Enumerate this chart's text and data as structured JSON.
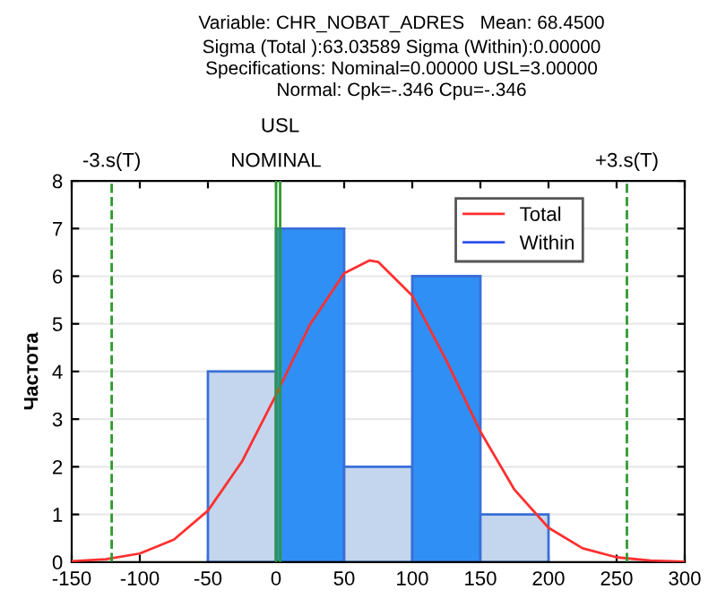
{
  "chart_data": {
    "type": "histogram",
    "title": "Variable: CHR_NOBAT_ADRES   Mean: 68.4500",
    "subtitle": "Sigma (Total ):63.03589 Sigma (Within):0.00000\nSpecifications: Nominal=0.00000 USL=3.00000\nNormal: Cpk=-.346 Cpu=-.346",
    "ylabel": "Частота",
    "bins": [
      -50,
      0,
      50,
      100,
      150,
      200
    ],
    "values": [
      4,
      7,
      2,
      6,
      1
    ],
    "colors": [
      "#c3d6ee",
      "#2f8ff5",
      "#c3d6ee",
      "#2f8ff5",
      "#c3d6ee"
    ],
    "series": [
      {
        "name": "Total",
        "type": "line",
        "color": "#ff3030",
        "x": [
          -150,
          -125,
          -100,
          -75,
          -50,
          -25,
          0,
          25,
          50,
          68.45,
          75,
          100,
          125,
          150,
          175,
          200,
          225,
          250,
          275,
          300
        ],
        "values": [
          0.02,
          0.06,
          0.18,
          0.47,
          1.08,
          2.11,
          3.51,
          4.99,
          6.06,
          6.33,
          6.3,
          5.59,
          4.23,
          2.74,
          1.52,
          0.72,
          0.29,
          0.1,
          0.03,
          0.01
        ]
      },
      {
        "name": "Within",
        "type": "line",
        "color": "#3050f0"
      }
    ],
    "ref_lines": [
      {
        "axis": "x",
        "value": -120.66,
        "label": "-3.s(T)",
        "color": "#2e9a2e",
        "line_style": "dashed"
      },
      {
        "axis": "x",
        "value": 0,
        "label": "NOMINAL",
        "color": "#2e9a2e",
        "line_style": "solid"
      },
      {
        "axis": "x",
        "value": 3,
        "label": "USL",
        "color": "#2e9a2e",
        "line_style": "solid"
      },
      {
        "axis": "x",
        "value": 257.56,
        "label": "+3.s(T)",
        "color": "#2e9a2e",
        "line_style": "dashed"
      }
    ],
    "xlim": [
      -150,
      300
    ],
    "xticks": [
      -150,
      -100,
      -50,
      0,
      50,
      100,
      150,
      200,
      250,
      300
    ],
    "ylim": [
      0,
      8
    ],
    "yticks": [
      0,
      1,
      2,
      3,
      4,
      5,
      6,
      7,
      8
    ],
    "grid": "y",
    "legend": "top right"
  }
}
